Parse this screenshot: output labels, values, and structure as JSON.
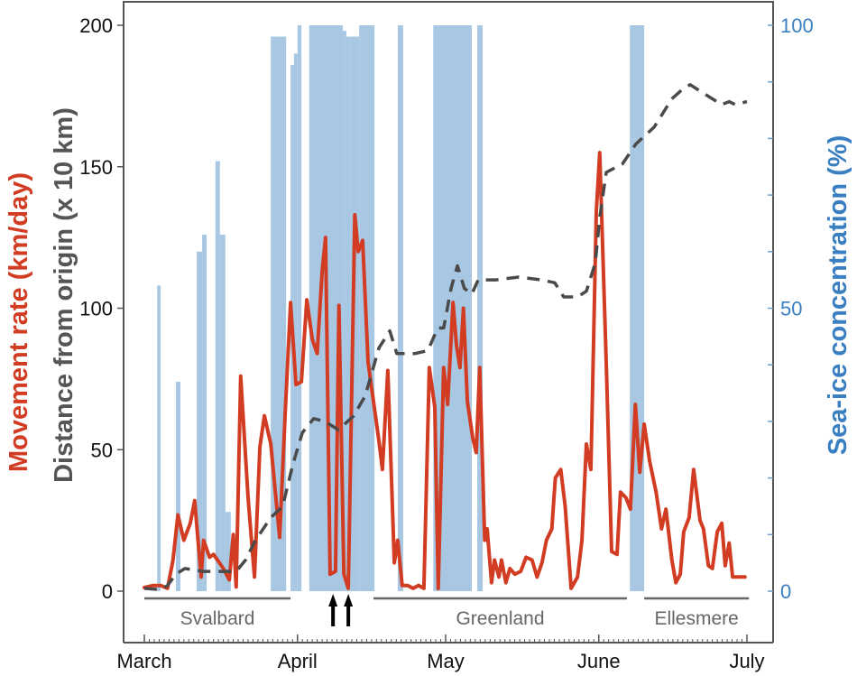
{
  "chart_data": {
    "type": "line",
    "title": "",
    "xlabel": "",
    "x_unit": "days since 1 March",
    "x_ticks": [
      {
        "day": 0,
        "label": "March"
      },
      {
        "day": 31,
        "label": "April"
      },
      {
        "day": 61,
        "label": "May"
      },
      {
        "day": 92,
        "label": "June"
      },
      {
        "day": 122,
        "label": "July"
      }
    ],
    "xlim": [
      -1.5,
      127
    ],
    "y_left": {
      "label_lines": [
        {
          "text": "Movement rate (km/day)",
          "color": "#d23c22"
        },
        {
          "text": "Distance from origin (x 10 km)",
          "color": "#555555"
        }
      ],
      "ylim": [
        0,
        200
      ],
      "ticks": [
        0,
        50,
        100,
        150,
        200
      ]
    },
    "y_right": {
      "label": "Sea-ice concentration (%)",
      "color": "#3a7fc1",
      "ylim": [
        0,
        100
      ],
      "ticks": [
        0,
        50,
        100
      ]
    },
    "series": [
      {
        "name": "Movement rate (km/day)",
        "color": "#d23c22",
        "style": "solid",
        "axis": "left",
        "points": [
          [
            0,
            1.3
          ],
          [
            1.8,
            2
          ],
          [
            3.3,
            2
          ],
          [
            4.7,
            1
          ],
          [
            5.8,
            11
          ],
          [
            6.8,
            27
          ],
          [
            8,
            18
          ],
          [
            9.3,
            24
          ],
          [
            10.2,
            32
          ],
          [
            11.5,
            5
          ],
          [
            12,
            18
          ],
          [
            13.2,
            12
          ],
          [
            14,
            13
          ],
          [
            16,
            8
          ],
          [
            17.2,
            4
          ],
          [
            18,
            20
          ],
          [
            18.6,
            1.5
          ],
          [
            19.5,
            76
          ],
          [
            21,
            33
          ],
          [
            22.3,
            5
          ],
          [
            23.4,
            51
          ],
          [
            24.3,
            62
          ],
          [
            25.6,
            52
          ],
          [
            26.8,
            30
          ],
          [
            27.4,
            19
          ],
          [
            28.5,
            62
          ],
          [
            29.6,
            102
          ],
          [
            30.7,
            73
          ],
          [
            31.8,
            74
          ],
          [
            32.9,
            103
          ],
          [
            34,
            89
          ],
          [
            35,
            84
          ],
          [
            36,
            113
          ],
          [
            36.7,
            125
          ],
          [
            37.6,
            6
          ],
          [
            38.7,
            7
          ],
          [
            39.4,
            101
          ],
          [
            40.4,
            6
          ],
          [
            41.3,
            1
          ],
          [
            42.6,
            133
          ],
          [
            43.3,
            120
          ],
          [
            44.2,
            124
          ],
          [
            45.3,
            81
          ],
          [
            47.5,
            53
          ],
          [
            48.2,
            43
          ],
          [
            49.3,
            78
          ],
          [
            50.6,
            10
          ],
          [
            51.3,
            18
          ],
          [
            52.2,
            2
          ],
          [
            53.3,
            2
          ],
          [
            54.4,
            1
          ],
          [
            55.5,
            2
          ],
          [
            56.6,
            1
          ],
          [
            57.7,
            79
          ],
          [
            58.8,
            65
          ],
          [
            59.5,
            1
          ],
          [
            60.6,
            79
          ],
          [
            61.4,
            66
          ],
          [
            62.5,
            102
          ],
          [
            63.2,
            87
          ],
          [
            63.9,
            79
          ],
          [
            64.6,
            100
          ],
          [
            65.4,
            67
          ],
          [
            66.5,
            54
          ],
          [
            67.2,
            49
          ],
          [
            67.9,
            79
          ],
          [
            68.9,
            18
          ],
          [
            69.4,
            22
          ],
          [
            70.3,
            3
          ],
          [
            70.9,
            11
          ],
          [
            71.8,
            5
          ],
          [
            72.3,
            11
          ],
          [
            73.2,
            3
          ],
          [
            74,
            8
          ],
          [
            75,
            6
          ],
          [
            76.2,
            7
          ],
          [
            77.3,
            12
          ],
          [
            78.5,
            11
          ],
          [
            79.5,
            5
          ],
          [
            80.5,
            10
          ],
          [
            81.4,
            18
          ],
          [
            82.5,
            22
          ],
          [
            83.2,
            40
          ],
          [
            84.3,
            43
          ],
          [
            85.2,
            30
          ],
          [
            86.4,
            1
          ],
          [
            87.7,
            5
          ],
          [
            88.6,
            18
          ],
          [
            89.5,
            52
          ],
          [
            90.4,
            43
          ],
          [
            91.5,
            134
          ],
          [
            92.2,
            155
          ],
          [
            93.5,
            81
          ],
          [
            94.6,
            14
          ],
          [
            95.7,
            13
          ],
          [
            96.4,
            35
          ],
          [
            97.5,
            33
          ],
          [
            98.4,
            29
          ],
          [
            99.4,
            66
          ],
          [
            100.3,
            42
          ],
          [
            101.2,
            59
          ],
          [
            102.3,
            46
          ],
          [
            103.6,
            35
          ],
          [
            104.7,
            22
          ],
          [
            105.6,
            29
          ],
          [
            106.8,
            11
          ],
          [
            107.6,
            3
          ],
          [
            108.5,
            6
          ],
          [
            109.2,
            21
          ],
          [
            110.3,
            26
          ],
          [
            111.2,
            43
          ],
          [
            112.5,
            25
          ],
          [
            113.2,
            22
          ],
          [
            114.2,
            9
          ],
          [
            115,
            8
          ],
          [
            116,
            21
          ],
          [
            116.9,
            24
          ],
          [
            117.6,
            9
          ],
          [
            118.4,
            17
          ],
          [
            119.1,
            5
          ],
          [
            121.6,
            5
          ]
        ]
      },
      {
        "name": "Distance from origin (x 10 km)",
        "color": "#4a4a4a",
        "style": "dashed",
        "axis": "left",
        "points": [
          [
            0,
            1
          ],
          [
            3.3,
            0.5
          ],
          [
            4.7,
            2
          ],
          [
            6.4,
            6
          ],
          [
            8.2,
            8
          ],
          [
            11.9,
            7
          ],
          [
            14.6,
            7
          ],
          [
            18.6,
            7
          ],
          [
            20.5,
            11
          ],
          [
            22.5,
            18
          ],
          [
            25.6,
            26
          ],
          [
            28,
            30
          ],
          [
            30.1,
            45
          ],
          [
            32,
            56
          ],
          [
            34.3,
            61
          ],
          [
            36.5,
            60
          ],
          [
            39.3,
            57
          ],
          [
            42.4,
            62
          ],
          [
            44.7,
            69
          ],
          [
            47.5,
            86
          ],
          [
            49.7,
            92
          ],
          [
            51.1,
            84
          ],
          [
            54.8,
            84
          ],
          [
            57.4,
            85
          ],
          [
            59.4,
            93
          ],
          [
            60.6,
            93
          ],
          [
            62.1,
            107
          ],
          [
            63.4,
            115
          ],
          [
            64.8,
            107
          ],
          [
            66.3,
            105
          ],
          [
            67.6,
            110
          ],
          [
            71.2,
            110
          ],
          [
            75.8,
            111
          ],
          [
            80.4,
            110
          ],
          [
            83.1,
            109
          ],
          [
            84.9,
            104
          ],
          [
            87.7,
            104
          ],
          [
            89.5,
            106
          ],
          [
            91.3,
            116
          ],
          [
            92.2,
            132
          ],
          [
            93.5,
            148
          ],
          [
            96.8,
            151
          ],
          [
            99.5,
            158
          ],
          [
            103.2,
            164
          ],
          [
            106.8,
            174
          ],
          [
            108.7,
            177
          ],
          [
            110.5,
            179
          ],
          [
            112.3,
            177
          ],
          [
            115,
            174
          ],
          [
            116.9,
            172
          ],
          [
            118.4,
            173
          ],
          [
            119.6,
            172
          ],
          [
            122,
            173
          ]
        ]
      }
    ],
    "sea_ice_bars": {
      "name": "Sea-ice concentration (%)",
      "color": "#a7c7e3",
      "axis": "right",
      "bars": [
        [
          2.6,
          3.3,
          54
        ],
        [
          6.4,
          7.3,
          37
        ],
        [
          10.6,
          11.7,
          60
        ],
        [
          11.7,
          12.6,
          63
        ],
        [
          14.4,
          15.3,
          76
        ],
        [
          15.3,
          16.4,
          63
        ],
        [
          16.4,
          17.5,
          14
        ],
        [
          25.6,
          28.7,
          98
        ],
        [
          29.6,
          30.3,
          93
        ],
        [
          30.3,
          31,
          95
        ],
        [
          31,
          31.8,
          100
        ],
        [
          33.4,
          40.2,
          100
        ],
        [
          40.2,
          40.9,
          99
        ],
        [
          40.9,
          41.8,
          98
        ],
        [
          41.8,
          43.5,
          98
        ],
        [
          43.5,
          46.6,
          100
        ],
        [
          51.3,
          52.4,
          100
        ],
        [
          58.5,
          66.3,
          100
        ],
        [
          67.4,
          68.5,
          100
        ],
        [
          98.3,
          101.2,
          100
        ]
      ]
    },
    "regions": [
      {
        "label": "Svalbard",
        "start": 0,
        "end": 29.6
      },
      {
        "label": "Greenland",
        "start": 46.4,
        "end": 97.7
      },
      {
        "label": "Ellesmere",
        "start": 101.2,
        "end": 122.4
      }
    ],
    "arrows_days": [
      38.2,
      41.3
    ]
  }
}
